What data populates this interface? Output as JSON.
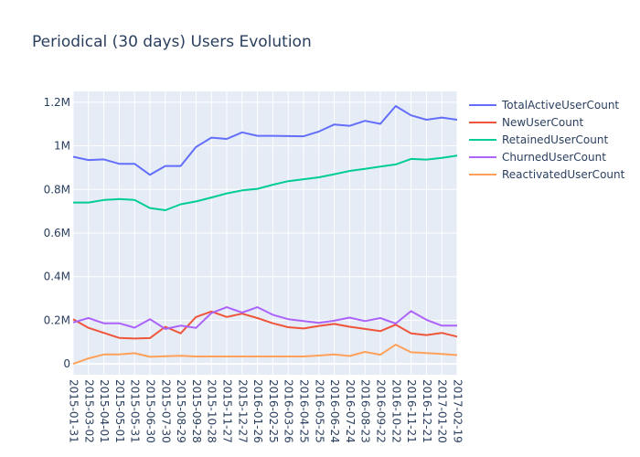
{
  "chart_data": {
    "type": "line",
    "title": "Periodical (30 days) Users Evolution",
    "xlabel": "",
    "ylabel": "",
    "ylim": [
      -50000,
      1250000
    ],
    "grid": true,
    "legend_position": "right",
    "y_ticks": [
      {
        "value": 0,
        "label": "0"
      },
      {
        "value": 200000,
        "label": "0.2M"
      },
      {
        "value": 400000,
        "label": "0.4M"
      },
      {
        "value": 600000,
        "label": "0.6M"
      },
      {
        "value": 800000,
        "label": "0.8M"
      },
      {
        "value": 1000000,
        "label": "1M"
      },
      {
        "value": 1200000,
        "label": "1.2M"
      }
    ],
    "x": [
      "2015-01-31",
      "2015-03-02",
      "2015-04-01",
      "2015-05-01",
      "2015-05-31",
      "2015-06-30",
      "2015-07-30",
      "2015-08-29",
      "2015-09-28",
      "2015-10-28",
      "2015-11-27",
      "2015-12-27",
      "2016-01-26",
      "2016-02-25",
      "2016-03-26",
      "2016-04-25",
      "2016-05-25",
      "2016-06-24",
      "2016-07-24",
      "2016-08-23",
      "2016-09-22",
      "2016-10-22",
      "2016-11-21",
      "2016-12-21",
      "2017-01-20",
      "2017-02-19"
    ],
    "series": [
      {
        "name": "TotalActiveUserCount",
        "color": "#636efa",
        "values": [
          950000,
          935000,
          938000,
          918000,
          918000,
          867000,
          908000,
          908000,
          995000,
          1038000,
          1032000,
          1062000,
          1046000,
          1046000,
          1045000,
          1044000,
          1066000,
          1098000,
          1092000,
          1115000,
          1101000,
          1183000,
          1140000,
          1120000,
          1130000,
          1120000
        ]
      },
      {
        "name": "NewUserCount",
        "color": "#ef553b",
        "values": [
          205000,
          165000,
          142000,
          119000,
          116000,
          118000,
          170000,
          140000,
          215000,
          240000,
          215000,
          230000,
          210000,
          186000,
          168000,
          162000,
          174000,
          183000,
          170000,
          160000,
          150000,
          180000,
          140000,
          132000,
          142000,
          125000
        ]
      },
      {
        "name": "RetainedUserCount",
        "color": "#00cc96",
        "values": [
          740000,
          740000,
          752000,
          756000,
          752000,
          715000,
          705000,
          732000,
          745000,
          763000,
          782000,
          796000,
          803000,
          822000,
          838000,
          847000,
          856000,
          870000,
          885000,
          895000,
          905000,
          915000,
          940000,
          937000,
          945000,
          955000
        ]
      },
      {
        "name": "ChurnedUserCount",
        "color": "#ab63fa",
        "values": [
          190000,
          210000,
          186000,
          186000,
          166000,
          205000,
          160000,
          175000,
          165000,
          233000,
          260000,
          235000,
          260000,
          225000,
          205000,
          196000,
          188000,
          198000,
          212000,
          196000,
          210000,
          185000,
          242000,
          202000,
          175000,
          175000
        ]
      },
      {
        "name": "ReactivatedUserCount",
        "color": "#ffa15a",
        "values": [
          0,
          25000,
          43000,
          43000,
          49000,
          32000,
          35000,
          37000,
          34000,
          34000,
          34000,
          34000,
          34000,
          34000,
          34000,
          34000,
          38000,
          43000,
          36000,
          55000,
          42000,
          88000,
          53000,
          50000,
          45000,
          40000
        ]
      }
    ]
  }
}
